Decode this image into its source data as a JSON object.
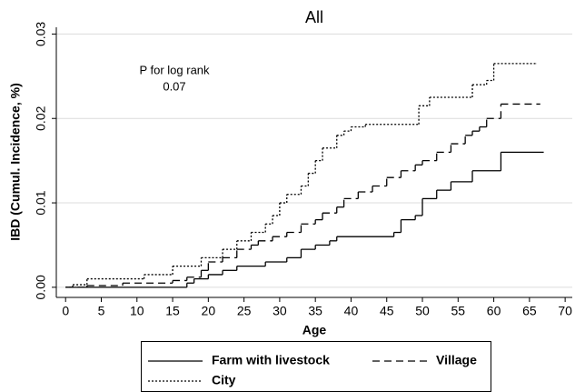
{
  "chart_data": {
    "type": "line",
    "step": "post",
    "title": "All",
    "x_label": "Age",
    "y_label": "IBD (Cumul. Incidence, %)",
    "annotation": [
      "P for log rank",
      "0.07"
    ],
    "xlim": [
      -1.3,
      71
    ],
    "ylim": [
      -0.0012,
      0.0308
    ],
    "xticks": [
      0,
      5,
      10,
      15,
      20,
      25,
      30,
      35,
      40,
      45,
      50,
      55,
      60,
      65,
      70
    ],
    "yticks": [
      {
        "value": 0,
        "label": "0.00"
      },
      {
        "value": 0.01,
        "label": "0.01"
      },
      {
        "value": 0.02,
        "label": "0.02"
      },
      {
        "value": 0.03,
        "label": "0.03"
      }
    ],
    "grid": true,
    "series": [
      {
        "name": "Farm with livestock",
        "color": "#000000",
        "dash": "solid",
        "x": [
          0,
          17,
          18,
          20,
          22,
          24,
          28,
          31,
          33,
          35,
          37,
          38,
          46,
          47,
          49,
          50,
          52,
          54,
          57,
          61,
          67
        ],
        "values": [
          0,
          0.0005,
          0.001,
          0.0015,
          0.002,
          0.0025,
          0.003,
          0.0035,
          0.0045,
          0.005,
          0.0055,
          0.006,
          0.0065,
          0.008,
          0.0085,
          0.0105,
          0.0115,
          0.0125,
          0.0138,
          0.016,
          0.016
        ]
      },
      {
        "name": "Village",
        "color": "#000000",
        "dash": "dashed",
        "x": [
          0,
          3,
          8,
          15,
          17,
          19,
          20,
          22,
          24,
          26,
          27,
          29,
          31,
          33,
          35,
          36,
          38,
          39,
          41,
          43,
          45,
          47,
          49,
          50,
          52,
          54,
          56,
          57,
          58,
          59,
          61,
          66.5
        ],
        "values": [
          0,
          0.0002,
          0.0005,
          0.0008,
          0.0012,
          0.002,
          0.003,
          0.0035,
          0.0045,
          0.005,
          0.0055,
          0.006,
          0.0065,
          0.0075,
          0.008,
          0.0088,
          0.0095,
          0.0105,
          0.0113,
          0.012,
          0.013,
          0.0138,
          0.0145,
          0.015,
          0.016,
          0.017,
          0.018,
          0.0185,
          0.019,
          0.02,
          0.0217,
          0.0217
        ]
      },
      {
        "name": "City",
        "color": "#000000",
        "dash": "dotted",
        "x": [
          0,
          1,
          3,
          11,
          15,
          19,
          22,
          24,
          26,
          28,
          29,
          30,
          31,
          33,
          34,
          35,
          36,
          38,
          39,
          40,
          42,
          49.5,
          51,
          57,
          59,
          60,
          66
        ],
        "values": [
          0,
          0.0003,
          0.001,
          0.0015,
          0.0025,
          0.0035,
          0.0045,
          0.0055,
          0.0065,
          0.0075,
          0.0085,
          0.01,
          0.011,
          0.012,
          0.0135,
          0.015,
          0.0165,
          0.018,
          0.0185,
          0.019,
          0.0193,
          0.0215,
          0.0225,
          0.024,
          0.0245,
          0.0265,
          0.0265
        ]
      }
    ]
  }
}
